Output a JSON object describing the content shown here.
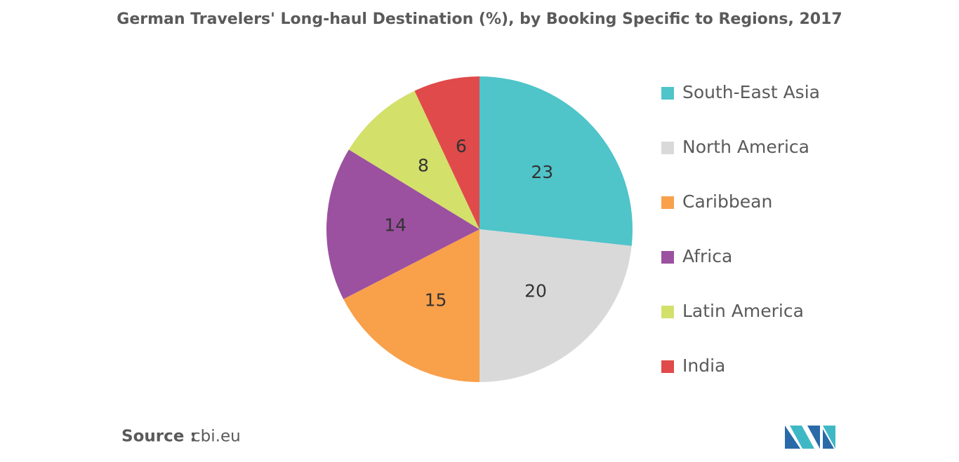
{
  "chart_data": {
    "type": "pie",
    "title": "German Travelers' Long-haul Destination (%), by Booking Specific to Regions, 2017",
    "categories": [
      "South-East Asia",
      "North America",
      "Caribbean",
      "Africa",
      "Latin America",
      "India"
    ],
    "values": [
      23,
      20,
      15,
      14,
      8,
      6
    ],
    "colors": [
      "#4fc4c9",
      "#d9d9d9",
      "#f9a04a",
      "#9b51a0",
      "#d3e06a",
      "#e04a4a"
    ],
    "legend": "right",
    "source_label": "Source :",
    "source": "cbi.eu"
  }
}
